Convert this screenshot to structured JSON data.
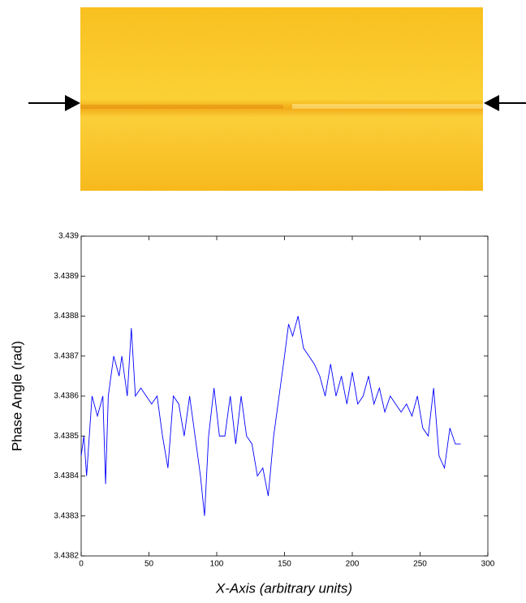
{
  "chart_data": {
    "type": "line",
    "xlabel": "X-Axis (arbitrary units)",
    "ylabel": "Phase Angle (rad)",
    "x": [
      0,
      2,
      4,
      6,
      8,
      12,
      16,
      18,
      20,
      24,
      28,
      30,
      34,
      37,
      40,
      44,
      48,
      52,
      56,
      60,
      64,
      68,
      72,
      76,
      80,
      84,
      88,
      91,
      94,
      98,
      102,
      106,
      110,
      114,
      118,
      122,
      126,
      130,
      134,
      138,
      142,
      146,
      150,
      153,
      156,
      160,
      164,
      168,
      172,
      176,
      180,
      184,
      188,
      192,
      196,
      200,
      204,
      208,
      212,
      216,
      220,
      224,
      228,
      232,
      236,
      240,
      244,
      248,
      252,
      256,
      260,
      264,
      268,
      272,
      276,
      280
    ],
    "values": [
      3.43845,
      3.4385,
      3.4384,
      3.4385,
      3.4386,
      3.43855,
      3.4386,
      3.43838,
      3.4386,
      3.4387,
      3.43865,
      3.4387,
      3.4386,
      3.43877,
      3.4386,
      3.43862,
      3.4386,
      3.43858,
      3.4386,
      3.4385,
      3.43842,
      3.4386,
      3.43858,
      3.4385,
      3.4386,
      3.4385,
      3.4384,
      3.4383,
      3.4385,
      3.43862,
      3.4385,
      3.4385,
      3.4386,
      3.43848,
      3.4386,
      3.4385,
      3.43848,
      3.4384,
      3.43842,
      3.43835,
      3.4385,
      3.4386,
      3.4387,
      3.43878,
      3.43875,
      3.4388,
      3.43872,
      3.4387,
      3.43868,
      3.43865,
      3.4386,
      3.43868,
      3.4386,
      3.43865,
      3.43858,
      3.43866,
      3.43858,
      3.4386,
      3.43865,
      3.43858,
      3.43862,
      3.43856,
      3.4386,
      3.43858,
      3.43856,
      3.43858,
      3.43855,
      3.4386,
      3.43852,
      3.4385,
      3.43862,
      3.43845,
      3.43842,
      3.43852,
      3.43848,
      3.43848
    ],
    "color": "#0000ff",
    "xlim": [
      0,
      300
    ],
    "xticks": [
      0,
      50,
      100,
      150,
      200,
      250,
      300
    ],
    "ylim": [
      3.4382,
      3.439
    ],
    "yticks": [
      3.4382,
      3.4383,
      3.4384,
      3.4385,
      3.4386,
      3.4387,
      3.4388,
      3.4389,
      3.439
    ],
    "grid": false
  }
}
